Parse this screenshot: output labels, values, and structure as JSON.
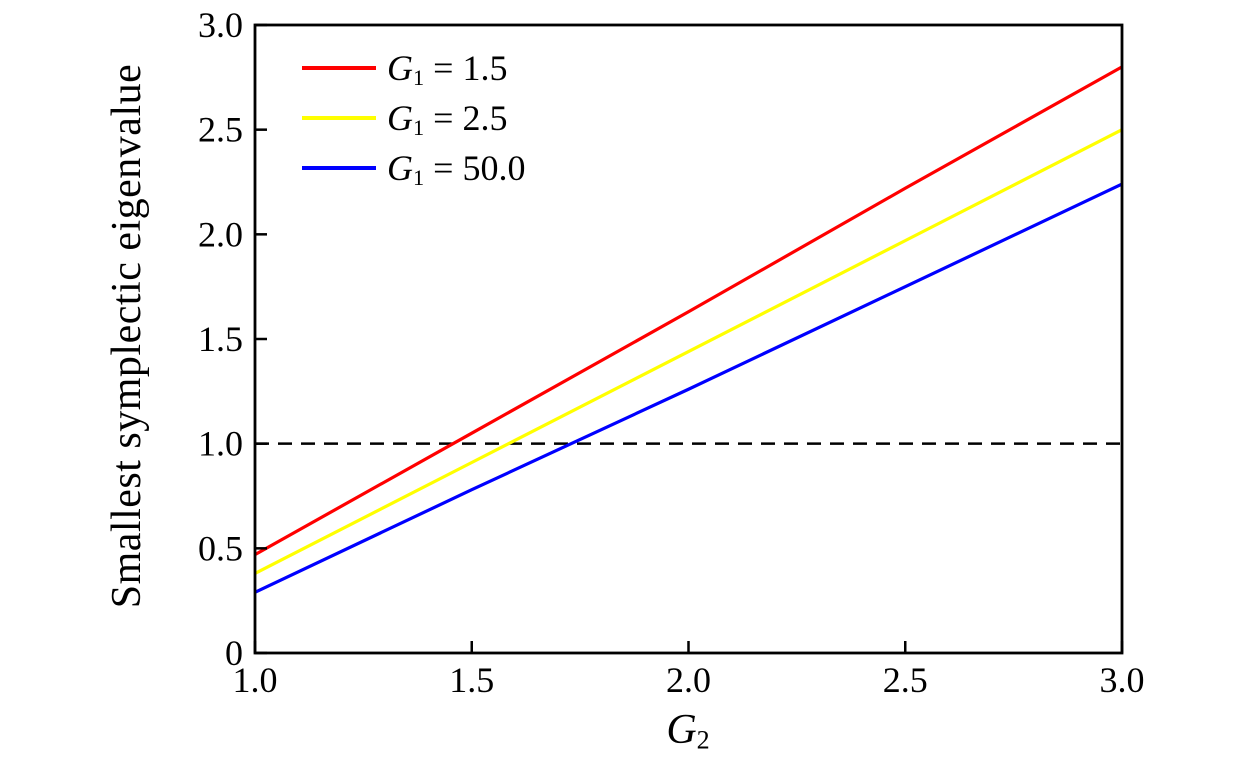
{
  "figure": {
    "background": "#ffffff",
    "spine_color": "#000000",
    "tick_color": "#000000"
  },
  "chart_data": {
    "type": "line",
    "title": "",
    "ylabel": "Smallest symplectic eigenvalue",
    "xlabel_base": "G",
    "xlabel_sub": "2",
    "xlim": [
      1.0,
      3.0
    ],
    "ylim": [
      0.0,
      3.0
    ],
    "grid": false,
    "legend_position": "upper-left",
    "legend_frame": false,
    "xticks": {
      "values": [
        1.0,
        1.5,
        2.0,
        2.5,
        3.0
      ],
      "labels": [
        "1.0",
        "1.5",
        "2.0",
        "2.5",
        "3.0"
      ]
    },
    "yticks": {
      "values": [
        0.0,
        0.5,
        1.0,
        1.5,
        2.0,
        2.5,
        3.0
      ],
      "labels": [
        "0",
        "0.5",
        "1.0",
        "1.5",
        "2.0",
        "2.5",
        "3.0"
      ]
    },
    "x": [
      1.0,
      1.5,
      2.0,
      2.5,
      3.0
    ],
    "series": [
      {
        "name_base": "G",
        "name_sub": "1",
        "name_rest": " = 1.5",
        "color": "#ff0000",
        "values": [
          0.47,
          1.05,
          1.63,
          2.22,
          2.8
        ]
      },
      {
        "name_base": "G",
        "name_sub": "1",
        "name_rest": " = 2.5",
        "color": "#ffff00",
        "values": [
          0.38,
          0.91,
          1.44,
          1.97,
          2.5
        ]
      },
      {
        "name_base": "G",
        "name_sub": "1",
        "name_rest": " = 50.0",
        "color": "#0000ff",
        "values": [
          0.29,
          0.78,
          1.26,
          1.75,
          2.24
        ]
      }
    ],
    "reference_line": {
      "y": 1.0,
      "color": "#000000",
      "style": "dashed"
    }
  }
}
